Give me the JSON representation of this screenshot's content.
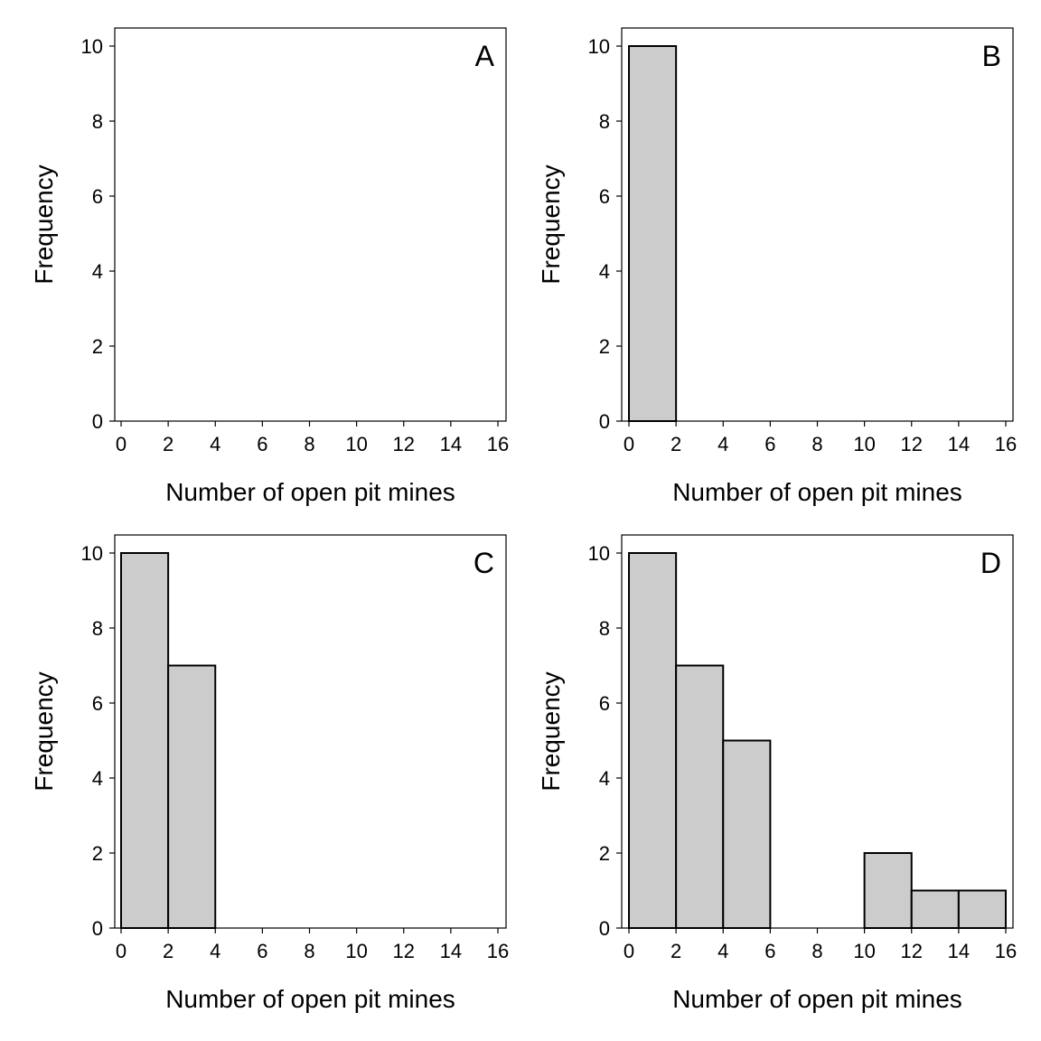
{
  "chart_data": [
    {
      "type": "bar",
      "panel_label": "A",
      "xlabel": "Number of open pit mines",
      "ylabel": "Frequency",
      "xlim": [
        0,
        16
      ],
      "ylim": [
        0,
        10
      ],
      "xticks": [
        0,
        2,
        4,
        6,
        8,
        10,
        12,
        14,
        16
      ],
      "yticks": [
        0,
        2,
        4,
        6,
        8,
        10
      ],
      "bins": [],
      "bar_color": "#cccccc",
      "grid": false
    },
    {
      "type": "bar",
      "panel_label": "B",
      "xlabel": "Number of open pit mines",
      "ylabel": "Frequency",
      "xlim": [
        0,
        16
      ],
      "ylim": [
        0,
        10
      ],
      "xticks": [
        0,
        2,
        4,
        6,
        8,
        10,
        12,
        14,
        16
      ],
      "yticks": [
        0,
        2,
        4,
        6,
        8,
        10
      ],
      "bins": [
        {
          "from": 0,
          "to": 2,
          "count": 10
        }
      ],
      "bar_color": "#cccccc",
      "grid": false
    },
    {
      "type": "bar",
      "panel_label": "C",
      "xlabel": "Number of open pit mines",
      "ylabel": "Frequency",
      "xlim": [
        0,
        16
      ],
      "ylim": [
        0,
        10
      ],
      "xticks": [
        0,
        2,
        4,
        6,
        8,
        10,
        12,
        14,
        16
      ],
      "yticks": [
        0,
        2,
        4,
        6,
        8,
        10
      ],
      "bins": [
        {
          "from": 0,
          "to": 2,
          "count": 10
        },
        {
          "from": 2,
          "to": 4,
          "count": 7
        }
      ],
      "bar_color": "#cccccc",
      "grid": false
    },
    {
      "type": "bar",
      "panel_label": "D",
      "xlabel": "Number of open pit mines",
      "ylabel": "Frequency",
      "xlim": [
        0,
        16
      ],
      "ylim": [
        0,
        10
      ],
      "xticks": [
        0,
        2,
        4,
        6,
        8,
        10,
        12,
        14,
        16
      ],
      "yticks": [
        0,
        2,
        4,
        6,
        8,
        10
      ],
      "bins": [
        {
          "from": 0,
          "to": 2,
          "count": 10
        },
        {
          "from": 2,
          "to": 4,
          "count": 7
        },
        {
          "from": 4,
          "to": 6,
          "count": 5
        },
        {
          "from": 6,
          "to": 8,
          "count": 0
        },
        {
          "from": 8,
          "to": 10,
          "count": 0
        },
        {
          "from": 10,
          "to": 12,
          "count": 2
        },
        {
          "from": 12,
          "to": 14,
          "count": 1
        },
        {
          "from": 14,
          "to": 16,
          "count": 1
        }
      ],
      "bar_color": "#cccccc",
      "grid": false
    }
  ]
}
